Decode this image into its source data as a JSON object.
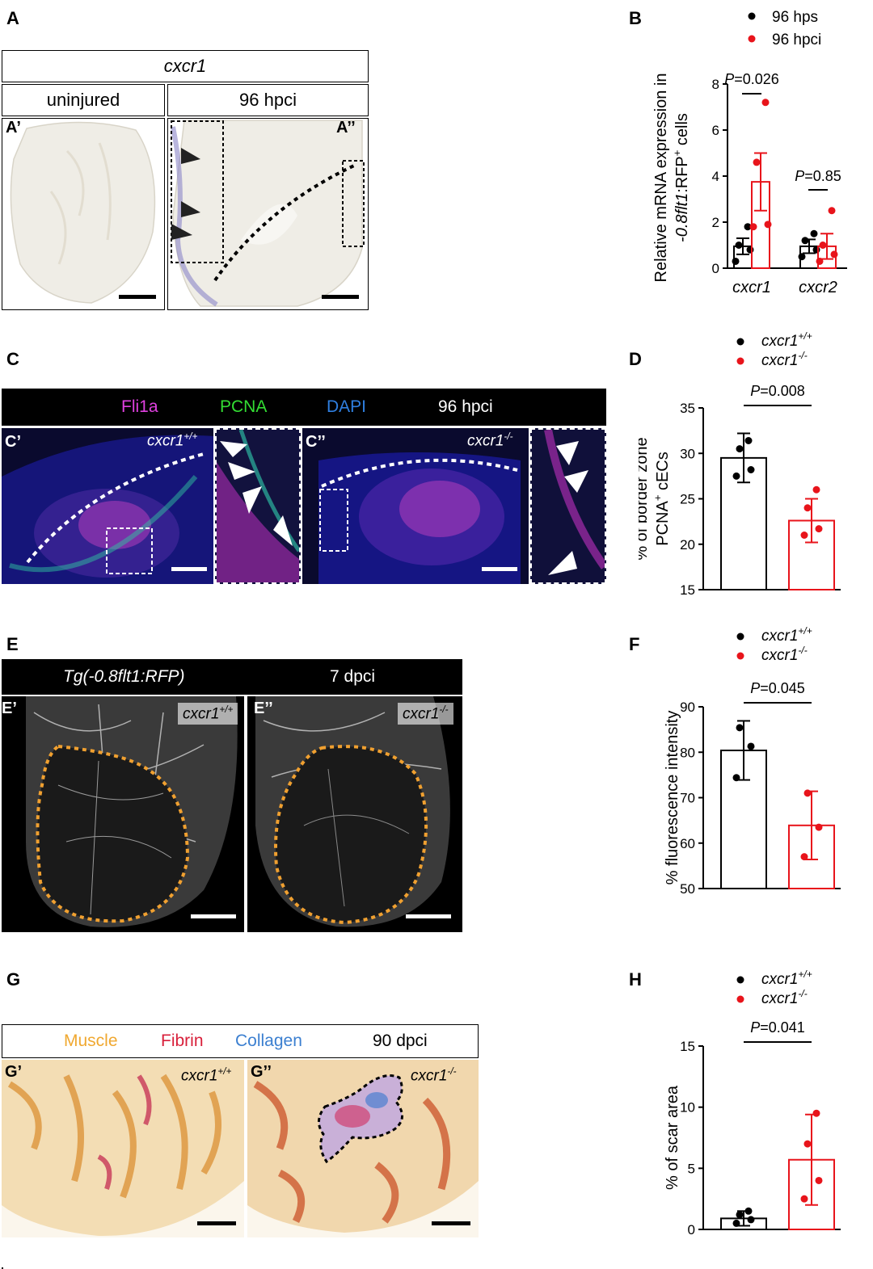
{
  "panels": {
    "A": {
      "letter": "A",
      "title": "cxcr1",
      "col1": "uninjured",
      "col2": "96 hpci",
      "sub1": "A’",
      "sub2": "A’’"
    },
    "B": {
      "letter": "B"
    },
    "C": {
      "letter": "C",
      "bar": {
        "ch1": "Fli1a",
        "ch2": "PCNA",
        "ch3": "DAPI",
        "time": "96 hpci"
      },
      "sub1": "C’",
      "sub2": "C’’",
      "geno1": "cxcr1",
      "geno1_sup": "+/+",
      "geno2": "cxcr1",
      "geno2_sup": "-/-"
    },
    "D": {
      "letter": "D"
    },
    "E": {
      "letter": "E",
      "bar": {
        "line": "Tg(-0.8flt1:RFP)",
        "time": "7 dpci"
      },
      "sub1": "E’",
      "sub2": "E’’",
      "geno1": "cxcr1",
      "geno1_sup": "+/+",
      "geno2": "cxcr1",
      "geno2_sup": "-/-"
    },
    "F": {
      "letter": "F"
    },
    "G": {
      "letter": "G",
      "bar": {
        "m": "Muscle",
        "f": "Fibrin",
        "c": "Collagen",
        "time": "90 dpci"
      },
      "sub1": "G’",
      "sub2": "G’’",
      "geno1": "cxcr1",
      "geno1_sup": "+/+",
      "geno2": "cxcr1",
      "geno2_sup": "-/-"
    },
    "H": {
      "letter": "H"
    }
  },
  "colors": {
    "wt": "#000000",
    "mut": "#e8141b",
    "fli1a": "#e040e0",
    "pcna": "#33dd33",
    "dapi": "#2f7fe0",
    "muscle": "#f0a830",
    "fibrin": "#d81f3a",
    "collagen": "#3b7fd0",
    "outline": "#f0a030"
  },
  "chart_data": [
    {
      "id": "B",
      "type": "bar",
      "legend": [
        "96 hps",
        "96 hpci"
      ],
      "ylabel": "Relative mRNA expression in",
      "ylabel2_italic": "-0.8flt1",
      "ylabel2_rest": ":RFP",
      "ylabel2_sup": "+",
      "ylabel2_end": " cells",
      "ylim": [
        0,
        8
      ],
      "yticks": [
        0,
        2,
        4,
        6,
        8
      ],
      "categories": [
        "cxcr1",
        "cxcr2"
      ],
      "series": [
        {
          "name": "96 hps",
          "values": [
            0.95,
            0.95
          ],
          "err": [
            0.35,
            0.3
          ],
          "points": [
            [
              0.3,
              0.8,
              1.0,
              1.8
            ],
            [
              0.5,
              0.8,
              1.2,
              1.5
            ]
          ]
        },
        {
          "name": "96 hpci",
          "values": [
            3.75,
            0.95
          ],
          "err": [
            1.25,
            0.55
          ],
          "points": [
            [
              1.8,
              1.9,
              4.6,
              7.2
            ],
            [
              0.3,
              0.6,
              1.0,
              2.5
            ]
          ]
        }
      ],
      "pvalues": [
        {
          "label": "P",
          "value": "=0.026",
          "group": 0
        },
        {
          "label": "P",
          "value": "=0.85",
          "group": 1
        }
      ]
    },
    {
      "id": "D",
      "type": "bar",
      "legend": [
        "cxcr1",
        "cxcr1"
      ],
      "legend_sup": [
        "+/+",
        "-/-"
      ],
      "ylabel": "% of border zone",
      "ylabel2": "PCNA",
      "ylabel2_sup": "+",
      "ylabel2_end": " cECs",
      "ylim": [
        15,
        35
      ],
      "yticks": [
        15,
        20,
        25,
        30,
        35
      ],
      "categories": [
        "cxcr1+/+",
        "cxcr1-/-"
      ],
      "values": [
        29.5,
        22.6
      ],
      "err": [
        2.7,
        2.4
      ],
      "points": [
        [
          27.5,
          28.2,
          30.5,
          31.4
        ],
        [
          21.0,
          21.7,
          24.0,
          26.0
        ]
      ],
      "pvalue": {
        "label": "P",
        "value": "=0.008"
      }
    },
    {
      "id": "F",
      "type": "bar",
      "legend": [
        "cxcr1",
        "cxcr1"
      ],
      "legend_sup": [
        "+/+",
        "-/-"
      ],
      "ylabel": "% fluorescence intensity",
      "ylim": [
        50,
        90
      ],
      "yticks": [
        50,
        60,
        70,
        80,
        90
      ],
      "categories": [
        "cxcr1+/+",
        "cxcr1-/-"
      ],
      "values": [
        80.4,
        63.9
      ],
      "err": [
        6.5,
        7.5
      ],
      "points": [
        [
          74.4,
          81.3,
          85.4
        ],
        [
          57.0,
          63.5,
          71.0
        ]
      ],
      "pvalue": {
        "label": "P",
        "value": "=0.045"
      }
    },
    {
      "id": "H",
      "type": "bar",
      "legend": [
        "cxcr1",
        "cxcr1"
      ],
      "legend_sup": [
        "+/+",
        "-/-"
      ],
      "ylabel": "% of scar area",
      "ylim": [
        0,
        15
      ],
      "yticks": [
        0,
        5,
        10,
        15
      ],
      "categories": [
        "cxcr1+/+",
        "cxcr1-/-"
      ],
      "values": [
        0.9,
        5.7
      ],
      "err": [
        0.6,
        3.7
      ],
      "points": [
        [
          0.5,
          0.8,
          1.2,
          1.5
        ],
        [
          2.5,
          4.0,
          7.0,
          9.5
        ]
      ],
      "pvalue": {
        "label": "P",
        "value": "=0.041"
      }
    }
  ]
}
